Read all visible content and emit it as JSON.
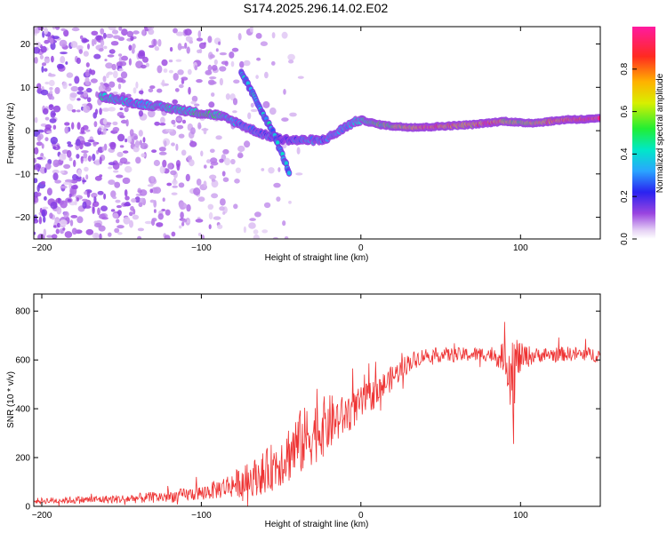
{
  "chart_data": [
    {
      "type": "heatmap",
      "title": "S174.2025.296.14.02.E02",
      "xlabel": "Height of straight line (km)",
      "ylabel": "Frequency (Hz)",
      "xlim": [
        -205,
        150
      ],
      "ylim": [
        -25,
        24
      ],
      "xticks": [
        -200,
        -100,
        0,
        100
      ],
      "yticks": [
        -20,
        -10,
        0,
        10,
        20
      ],
      "colorbar": {
        "label": "Normalized spectral amplitude",
        "range": [
          0,
          1
        ],
        "ticks": [
          0.0,
          0.2,
          0.4,
          0.6,
          0.8
        ],
        "tick_labels": [
          "0.0",
          "0.2",
          "0.4",
          "0.6",
          "0.8"
        ],
        "colormap": "white-purple-blue-cyan-green-yellow-red-magenta"
      },
      "ridge": {
        "description": "dominant frequency track vs height",
        "x": [
          -163,
          -150,
          -140,
          -130,
          -120,
          -110,
          -100,
          -90,
          -80,
          -70,
          -60,
          -50,
          -40,
          -30,
          -25,
          -20,
          -15,
          -10,
          -5,
          0,
          10,
          20,
          30,
          40,
          50,
          60,
          70,
          80,
          90,
          100,
          110,
          120,
          130,
          140,
          150
        ],
        "y": [
          8.0,
          7.0,
          6.2,
          5.8,
          5.2,
          4.6,
          4.0,
          3.6,
          2.2,
          0.5,
          -1.0,
          -2.0,
          -2.2,
          -2.2,
          -2.3,
          -1.5,
          -0.5,
          0.8,
          1.8,
          2.5,
          1.5,
          1.0,
          0.8,
          0.8,
          1.0,
          1.2,
          1.4,
          1.8,
          2.2,
          1.8,
          1.8,
          2.2,
          2.6,
          2.6,
          2.8
        ],
        "amplitude": [
          0.45,
          0.4,
          0.35,
          0.4,
          0.45,
          0.45,
          0.5,
          0.45,
          0.35,
          0.3,
          0.3,
          0.25,
          0.3,
          0.35,
          0.3,
          0.3,
          0.35,
          0.35,
          0.35,
          0.45,
          0.55,
          0.6,
          0.75,
          0.95,
          0.85,
          0.8,
          0.75,
          0.9,
          0.7,
          0.65,
          0.7,
          0.85,
          0.9,
          1.0,
          0.95
        ]
      },
      "secondary_branch": {
        "description": "diagonal feature",
        "x": [
          -75,
          -70,
          -65,
          -60,
          -55,
          -50,
          -45
        ],
        "y": [
          13.5,
          10.0,
          6.5,
          3.0,
          -0.5,
          -5.0,
          -9.5
        ]
      }
    },
    {
      "type": "line",
      "title": "",
      "xlabel": "Height of straight line (km)",
      "ylabel": "SNR (10 * v/v)",
      "xlim": [
        -205,
        150
      ],
      "ylim": [
        0,
        870
      ],
      "xticks": [
        -200,
        -100,
        0,
        100
      ],
      "yticks": [
        0,
        200,
        400,
        600,
        800
      ],
      "color": "#ee3333",
      "envelope": {
        "x": [
          -205,
          -150,
          -120,
          -100,
          -90,
          -80,
          -70,
          -60,
          -50,
          -40,
          -30,
          -20,
          -10,
          0,
          10,
          20,
          30,
          40,
          60,
          80,
          90,
          95,
          100,
          110,
          130,
          150
        ],
        "mean": [
          22,
          30,
          40,
          55,
          70,
          90,
          110,
          140,
          190,
          250,
          300,
          340,
          370,
          420,
          470,
          530,
          590,
          620,
          620,
          625,
          610,
          560,
          610,
          620,
          625,
          620
        ],
        "noise": [
          12,
          18,
          25,
          30,
          40,
          55,
          70,
          90,
          110,
          140,
          130,
          120,
          80,
          70,
          60,
          50,
          40,
          30,
          30,
          30,
          60,
          200,
          60,
          30,
          30,
          30
        ]
      }
    }
  ]
}
